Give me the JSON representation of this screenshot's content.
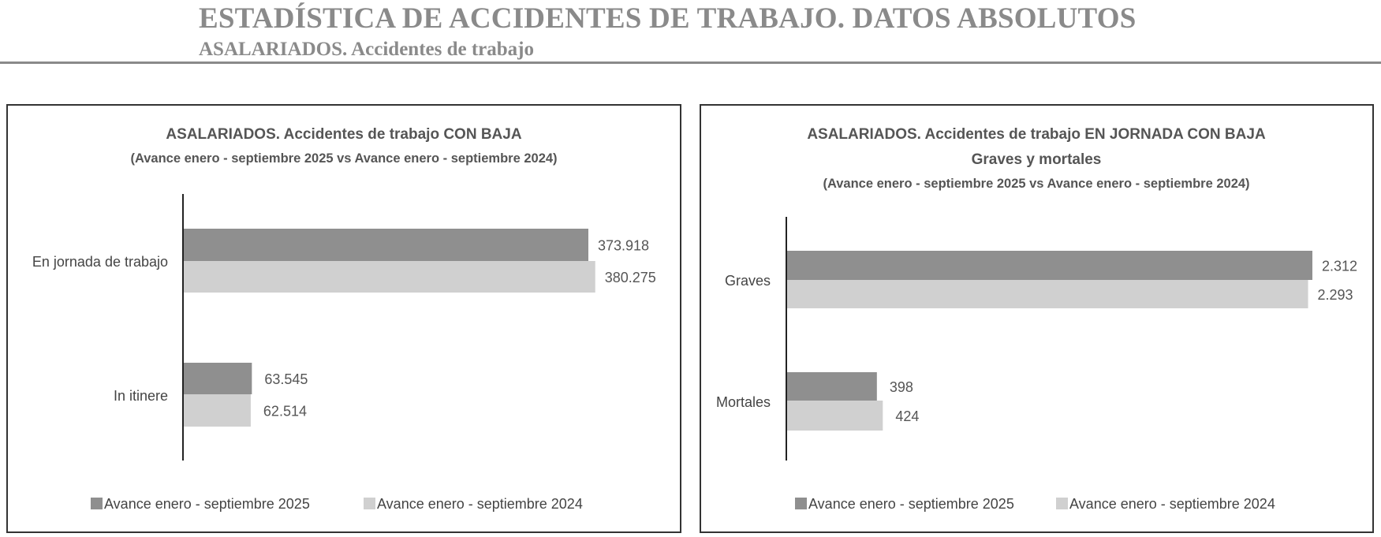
{
  "header": {
    "title": "ESTADÍSTICA DE ACCIDENTES DE TRABAJO. DATOS ABSOLUTOS",
    "subtitle": "ASALARIADOS. Accidentes de trabajo"
  },
  "colors": {
    "series_2025": "#8f8f8f",
    "series_2024": "#d0d0d0",
    "header": "#8a8a8a"
  },
  "chart_data": [
    {
      "type": "bar",
      "orientation": "horizontal",
      "title": "ASALARIADOS. Accidentes de trabajo CON BAJA",
      "subtitle": "(Avance enero - septiembre 2025 vs Avance enero - septiembre 2024)",
      "subtitle2": "",
      "categories": [
        "En jornada de trabajo",
        "In itinere"
      ],
      "series": [
        {
          "name": "Avance enero - septiembre 2025",
          "values": [
            373918,
            63545
          ],
          "labels": [
            "373.918",
            "63.545"
          ]
        },
        {
          "name": "Avance enero - septiembre 2024",
          "values": [
            380275,
            62514
          ],
          "labels": [
            "380.275",
            "62.514"
          ]
        }
      ],
      "legend": "bottom",
      "grid": false
    },
    {
      "type": "bar",
      "orientation": "horizontal",
      "title": "ASALARIADOS. Accidentes de trabajo EN JORNADA CON BAJA",
      "subtitle": "Graves y mortales",
      "subtitle2": "(Avance enero - septiembre 2025 vs Avance enero - septiembre 2024)",
      "categories": [
        "Graves",
        "Mortales"
      ],
      "series": [
        {
          "name": "Avance enero - septiembre 2025",
          "values": [
            2312,
            398
          ],
          "labels": [
            "2.312",
            "398"
          ]
        },
        {
          "name": "Avance enero - septiembre 2024",
          "values": [
            2293,
            424
          ],
          "labels": [
            "2.293",
            "424"
          ]
        }
      ],
      "legend": "bottom",
      "grid": false
    }
  ]
}
